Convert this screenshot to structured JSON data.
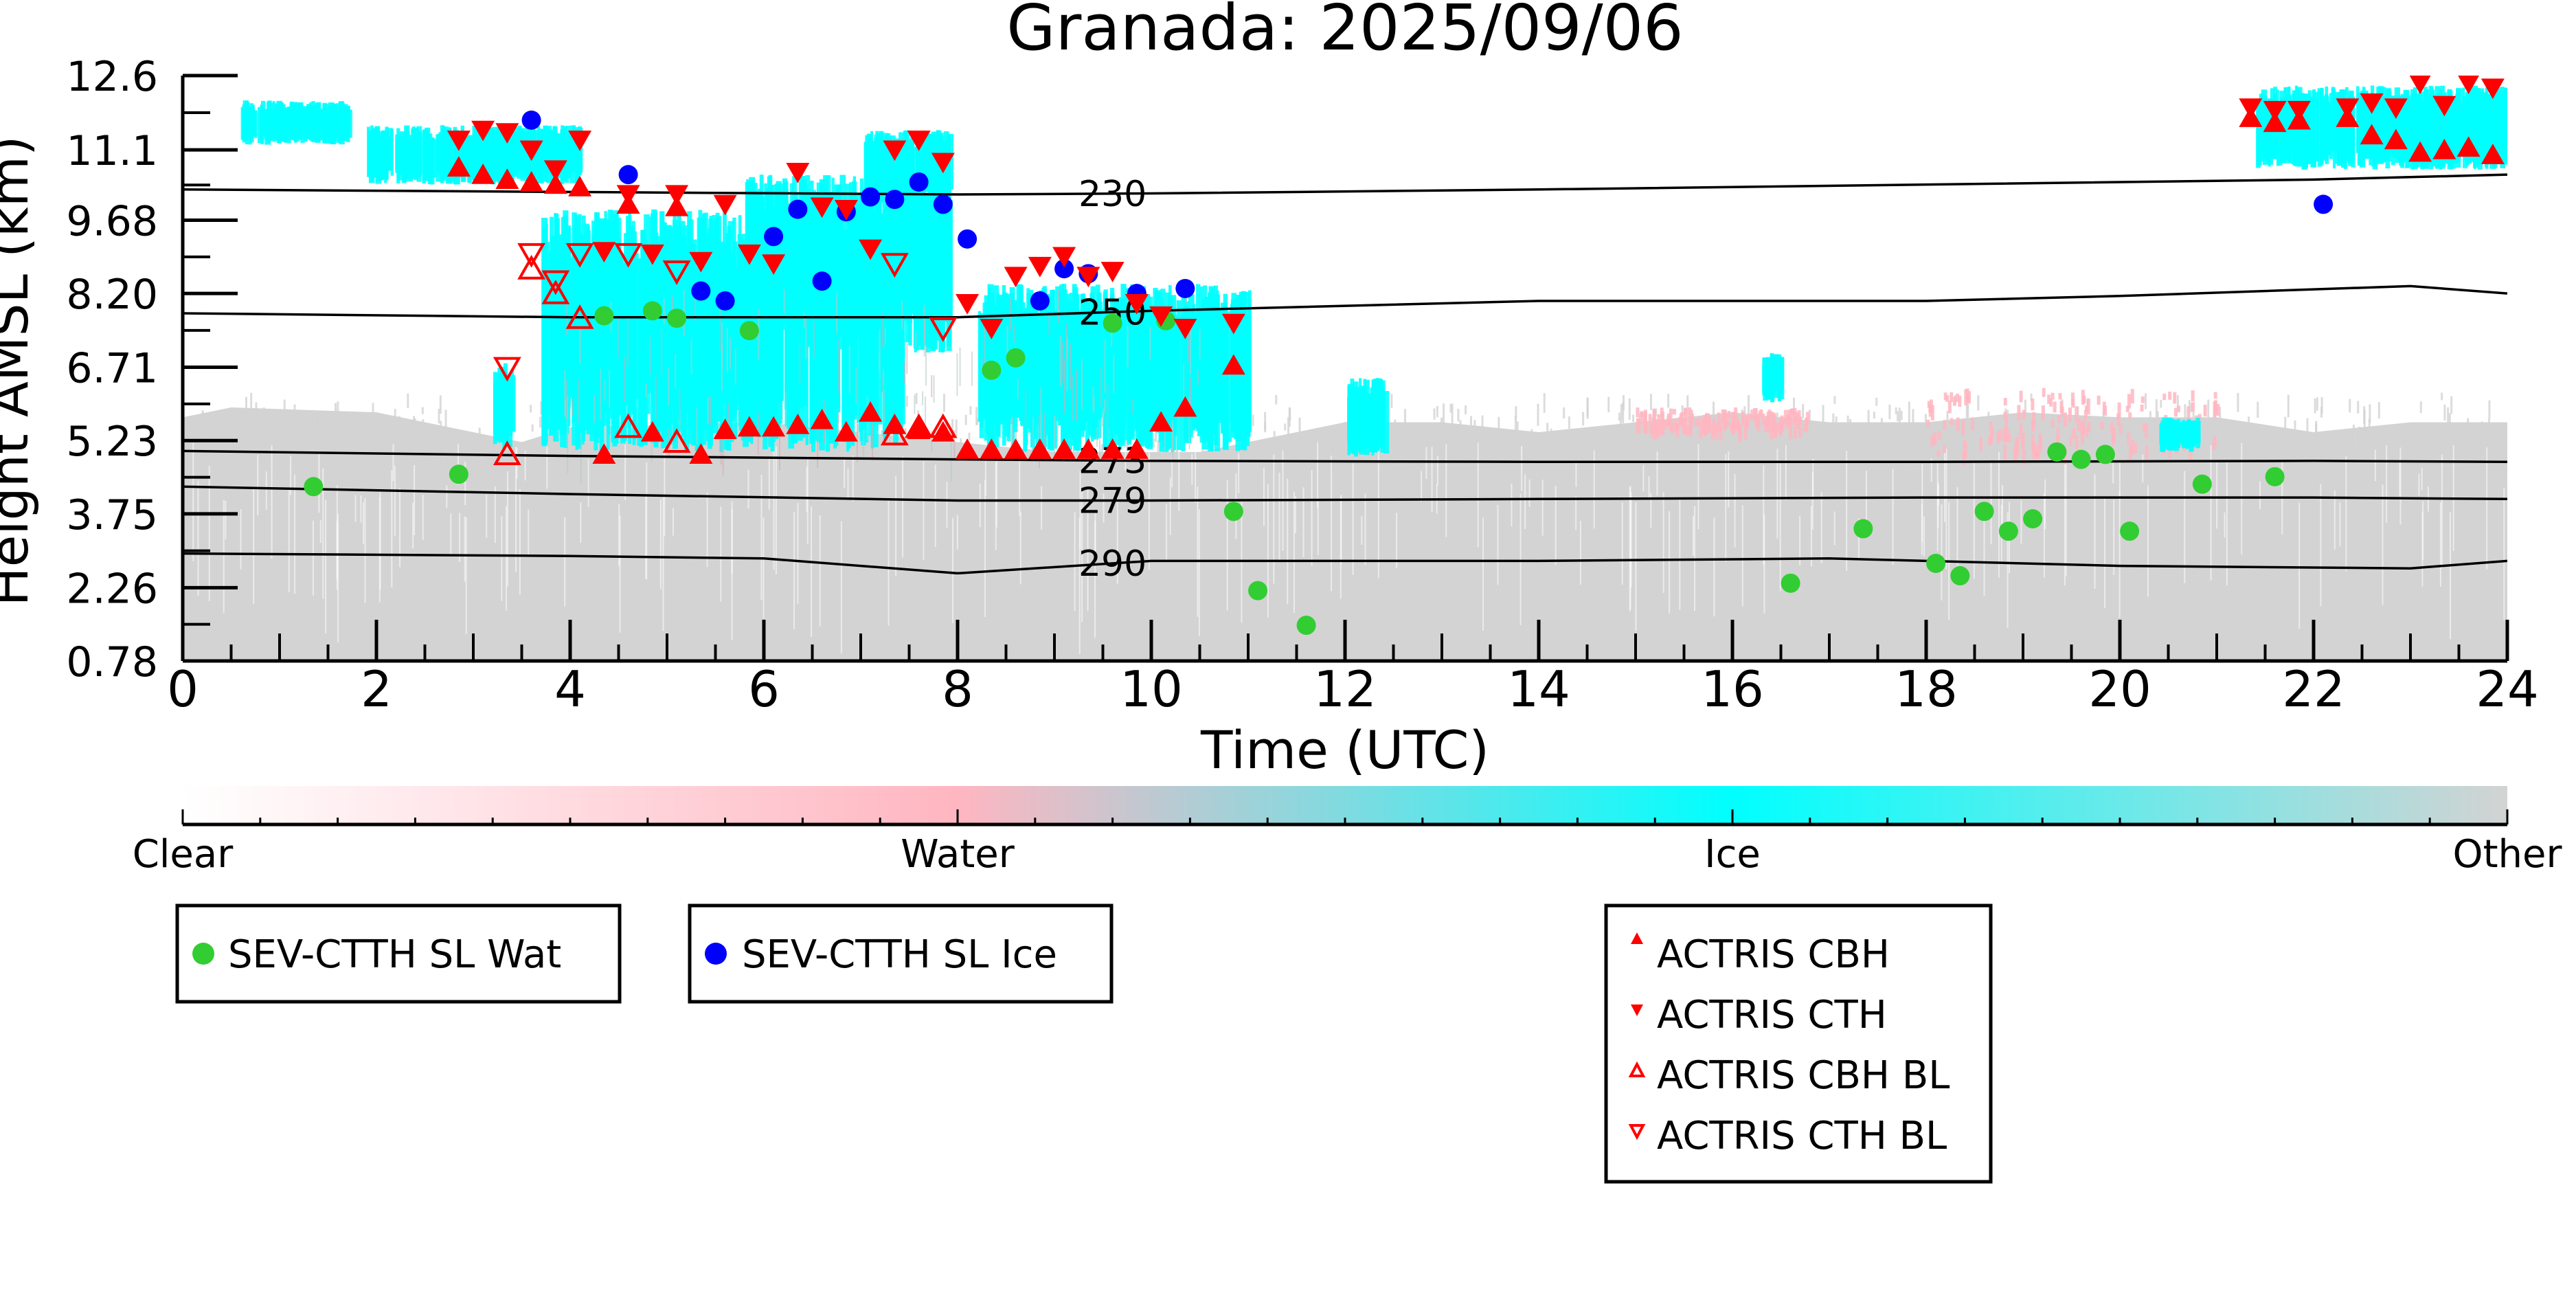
{
  "chart_data": {
    "type": "scatter",
    "title": "Granada: 2025/09/06",
    "xlabel": "Time (UTC)",
    "ylabel": "Height AMSL (km)",
    "xlim": [
      0,
      24
    ],
    "ylim": [
      0.78,
      12.6
    ],
    "x_ticks": [
      "0",
      "2",
      "4",
      "6",
      "8",
      "10",
      "12",
      "14",
      "16",
      "18",
      "20",
      "22",
      "24"
    ],
    "y_ticks": [
      "0.78",
      "2.26",
      "3.75",
      "5.23",
      "6.71",
      "8.20",
      "9.68",
      "11.1",
      "12.6"
    ],
    "y_tick_values": [
      0.78,
      2.26,
      3.75,
      5.23,
      6.71,
      8.2,
      9.68,
      11.1,
      12.6
    ],
    "grid": false,
    "background": {
      "description_classes": [
        "Clear",
        "Water",
        "Ice",
        "Other"
      ],
      "other_color": "#d3d3d3",
      "ice_color": "#00ffff",
      "water_color": "#ffb6c1",
      "ice_regions": [
        {
          "x": [
            0.6,
            1.7
          ],
          "y": [
            11.2,
            12.1
          ]
        },
        {
          "x": [
            1.9,
            4.1
          ],
          "y": [
            10.4,
            11.6
          ]
        },
        {
          "x": [
            3.2,
            3.4
          ],
          "y": [
            5.0,
            6.8
          ]
        },
        {
          "x": [
            3.7,
            7.4
          ],
          "y": [
            5.0,
            9.9
          ]
        },
        {
          "x": [
            5.8,
            7.9
          ],
          "y": [
            7.0,
            10.6
          ]
        },
        {
          "x": [
            7.0,
            7.9
          ],
          "y": [
            10.0,
            11.5
          ]
        },
        {
          "x": [
            8.2,
            11.0
          ],
          "y": [
            5.0,
            8.4
          ]
        },
        {
          "x": [
            12.0,
            12.4
          ],
          "y": [
            4.9,
            6.5
          ]
        },
        {
          "x": [
            16.3,
            16.5
          ],
          "y": [
            6.0,
            7.0
          ]
        },
        {
          "x": [
            20.4,
            20.8
          ],
          "y": [
            5.0,
            5.7
          ]
        },
        {
          "x": [
            21.4,
            24.0
          ],
          "y": [
            10.7,
            12.4
          ]
        }
      ],
      "water_regions": [
        {
          "x": [
            18.0,
            21.0
          ],
          "y": [
            5.0,
            6.3
          ]
        },
        {
          "x": [
            15.0,
            16.8
          ],
          "y": [
            5.5,
            5.9
          ]
        }
      ]
    },
    "contours": [
      {
        "label": "230",
        "x": [
          0,
          4,
          8,
          10,
          14,
          18,
          22,
          24
        ],
        "y": [
          10.3,
          10.25,
          10.2,
          10.22,
          10.3,
          10.4,
          10.5,
          10.6
        ]
      },
      {
        "label": "250",
        "x": [
          0,
          4,
          8,
          10,
          14,
          18,
          20,
          23,
          24
        ],
        "y": [
          7.8,
          7.72,
          7.72,
          7.85,
          8.05,
          8.05,
          8.15,
          8.35,
          8.2
        ]
      },
      {
        "label": "273",
        "x": [
          0,
          4,
          8,
          10,
          14,
          18,
          22,
          24
        ],
        "y": [
          5.02,
          4.92,
          4.85,
          4.82,
          4.8,
          4.8,
          4.82,
          4.8
        ]
      },
      {
        "label": "279",
        "x": [
          0,
          4,
          8,
          10,
          14,
          18,
          22,
          24
        ],
        "y": [
          4.3,
          4.15,
          4.02,
          4.02,
          4.05,
          4.08,
          4.08,
          4.05
        ]
      },
      {
        "label": "290",
        "x": [
          0,
          4,
          6,
          8,
          10,
          14,
          17,
          20,
          23,
          24
        ],
        "y": [
          2.95,
          2.9,
          2.85,
          2.55,
          2.8,
          2.8,
          2.85,
          2.7,
          2.65,
          2.8
        ]
      }
    ],
    "series": [
      {
        "name": "SEV-CTTH SL Wat",
        "marker": "circle",
        "color": "#32cd32",
        "x": [
          1.35,
          2.85,
          4.35,
          4.85,
          5.1,
          5.85,
          8.35,
          8.6,
          9.6,
          10.15,
          10.85,
          11.1,
          11.6,
          16.6,
          17.35,
          18.1,
          18.35,
          18.6,
          18.85,
          19.1,
          19.35,
          19.6,
          19.85,
          20.1,
          20.85,
          21.6
        ],
        "y": [
          4.3,
          4.55,
          7.75,
          7.85,
          7.7,
          7.45,
          6.65,
          6.9,
          7.6,
          7.65,
          3.8,
          2.2,
          1.5,
          2.35,
          3.45,
          2.75,
          2.5,
          3.8,
          3.4,
          3.65,
          5.0,
          4.85,
          4.95,
          3.4,
          4.35,
          4.5
        ]
      },
      {
        "name": "SEV-CTTH SL Ice",
        "marker": "circle",
        "color": "#0000ff",
        "x": [
          3.6,
          4.6,
          5.35,
          5.6,
          6.1,
          6.35,
          6.6,
          6.85,
          7.1,
          7.35,
          7.6,
          7.85,
          8.1,
          8.85,
          9.1,
          9.35,
          9.85,
          10.35,
          22.1
        ],
        "y": [
          11.7,
          10.6,
          8.25,
          8.05,
          9.35,
          9.9,
          8.45,
          9.85,
          10.15,
          10.1,
          10.45,
          10.0,
          9.3,
          8.05,
          8.7,
          8.6,
          8.2,
          8.3,
          10.0
        ]
      },
      {
        "name": "ACTRIS CBH",
        "marker": "triangle-up",
        "color": "#ff0000",
        "x": [
          2.85,
          3.1,
          3.35,
          3.6,
          3.85,
          4.1,
          4.35,
          4.6,
          4.85,
          5.1,
          5.35,
          5.6,
          5.85,
          6.1,
          6.35,
          6.6,
          6.85,
          7.1,
          7.35,
          7.6,
          7.85,
          8.1,
          8.35,
          8.6,
          8.85,
          9.1,
          9.35,
          9.6,
          9.85,
          10.1,
          10.35,
          10.85,
          21.35,
          21.6,
          21.85,
          22.35,
          22.6,
          22.85,
          23.1,
          23.35,
          23.6,
          23.85
        ],
        "y": [
          10.75,
          10.6,
          10.5,
          10.45,
          10.4,
          10.35,
          4.95,
          10.0,
          5.4,
          9.95,
          4.95,
          5.45,
          5.5,
          5.5,
          5.55,
          5.65,
          5.4,
          5.8,
          5.55,
          5.45,
          5.4,
          5.05,
          5.05,
          5.05,
          5.05,
          5.05,
          5.05,
          5.05,
          5.05,
          5.6,
          5.9,
          6.75,
          11.75,
          11.65,
          11.7,
          11.75,
          11.4,
          11.3,
          11.05,
          11.1,
          11.15,
          11.0
        ],
        "filled": true
      },
      {
        "name": "ACTRIS CTH",
        "marker": "triangle-down",
        "color": "#ff0000",
        "x": [
          2.85,
          3.1,
          3.35,
          3.6,
          3.85,
          4.1,
          4.35,
          4.6,
          4.85,
          5.1,
          5.35,
          5.6,
          5.85,
          6.1,
          6.35,
          6.6,
          6.85,
          7.1,
          7.35,
          7.6,
          7.85,
          8.1,
          8.35,
          8.6,
          8.85,
          9.1,
          9.35,
          9.6,
          9.85,
          10.1,
          10.35,
          10.85,
          21.35,
          21.6,
          21.85,
          22.35,
          22.6,
          22.85,
          23.1,
          23.35,
          23.6,
          23.85
        ],
        "y": [
          11.3,
          11.5,
          11.45,
          11.1,
          10.7,
          11.3,
          9.05,
          10.2,
          9.0,
          10.2,
          8.85,
          10.0,
          9.0,
          8.8,
          10.65,
          9.95,
          9.9,
          9.1,
          11.1,
          11.3,
          10.85,
          8.0,
          7.5,
          8.55,
          8.75,
          8.95,
          8.55,
          8.65,
          8.0,
          7.75,
          7.5,
          7.6,
          11.95,
          11.9,
          11.9,
          11.95,
          12.05,
          11.95,
          12.45,
          12.0,
          12.45,
          12.35
        ],
        "filled": true
      },
      {
        "name": "ACTRIS CBH BL",
        "marker": "triangle-up",
        "color": "#ff0000",
        "x": [
          3.35,
          3.6,
          3.85,
          4.1,
          4.6,
          5.1,
          7.35,
          7.6,
          7.85
        ],
        "y": [
          4.95,
          8.7,
          8.2,
          7.7,
          5.5,
          5.2,
          5.35,
          5.5,
          5.5
        ],
        "filled": false
      },
      {
        "name": "ACTRIS CTH BL",
        "marker": "triangle-down",
        "color": "#ff0000",
        "x": [
          3.35,
          3.6,
          3.85,
          4.1,
          4.6,
          5.1,
          7.35,
          7.85
        ],
        "y": [
          6.7,
          9.0,
          8.45,
          9.0,
          9.0,
          8.65,
          8.8,
          7.5
        ],
        "filled": false
      }
    ],
    "colorbar": {
      "labels": [
        "Clear",
        "Water",
        "Ice",
        "Other"
      ],
      "stops": [
        "#ffffff",
        "#ffb6c1",
        "#00ffff",
        "#d3d3d3"
      ]
    },
    "legend": {
      "placement": "below",
      "groups": [
        [
          "SEV-CTTH SL Wat"
        ],
        [
          "SEV-CTTH SL Ice"
        ],
        [
          "ACTRIS CBH",
          "ACTRIS CTH",
          "ACTRIS CBH BL",
          "ACTRIS CTH BL"
        ]
      ]
    }
  }
}
